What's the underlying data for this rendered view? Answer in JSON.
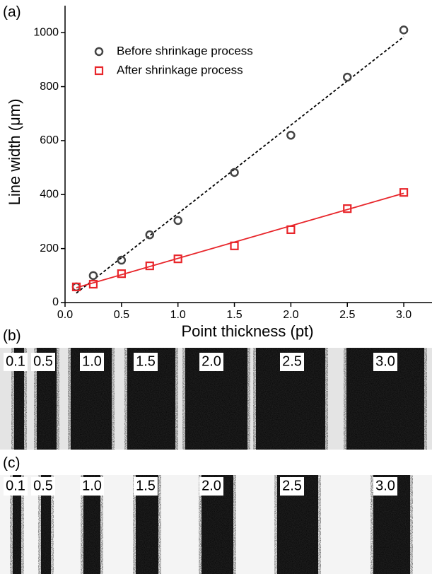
{
  "chart_data": {
    "type": "scatter",
    "panel_label": "(a)",
    "x_label": "Point thickness (pt)",
    "y_label": "Line width (μm)",
    "xlim": [
      0,
      3.25
    ],
    "ylim": [
      0,
      1100
    ],
    "xticks": [
      {
        "value": 0,
        "label": "0.0"
      },
      {
        "value": 0.5,
        "label": "0.5"
      },
      {
        "value": 1,
        "label": "1.0"
      },
      {
        "value": 1.5,
        "label": "1.5"
      },
      {
        "value": 2,
        "label": "2.0"
      },
      {
        "value": 2.5,
        "label": "2.5"
      },
      {
        "value": 3,
        "label": "3.0"
      }
    ],
    "yticks": [
      0,
      200,
      400,
      600,
      800,
      1000
    ],
    "series": [
      {
        "name": "Before shrinkage process",
        "color": "#444444",
        "marker": "circle",
        "x": [
          0.1,
          0.25,
          0.5,
          0.75,
          1.0,
          1.5,
          2.0,
          2.5,
          3.0
        ],
        "values": [
          58,
          100,
          157,
          251,
          304,
          482,
          620,
          835,
          1010
        ]
      },
      {
        "name": "After shrinkage process",
        "color": "#e8262b",
        "marker": "square",
        "x": [
          0.1,
          0.25,
          0.5,
          0.75,
          1.0,
          1.5,
          2.0,
          2.5,
          3.0
        ],
        "values": [
          58,
          68,
          107,
          136,
          162,
          210,
          270,
          348,
          408
        ]
      }
    ],
    "fits": [
      {
        "color": "#000000",
        "dashed": true,
        "x": [
          0.1,
          3.0
        ],
        "values": [
          35,
          985
        ]
      },
      {
        "color": "#e8262b",
        "dashed": false,
        "x": [
          0.1,
          3.0
        ],
        "values": [
          55,
          405
        ]
      }
    ]
  },
  "panels": [
    {
      "label": "(b)",
      "thickness_labels": [
        "0.1",
        "0.5",
        "1.0",
        "1.5",
        "2.0",
        "2.5",
        "3.0"
      ]
    },
    {
      "label": "(c)",
      "thickness_labels": [
        "0.1",
        "0.5",
        "1.0",
        "1.5",
        "2.0",
        "2.5",
        "3.0"
      ]
    }
  ]
}
